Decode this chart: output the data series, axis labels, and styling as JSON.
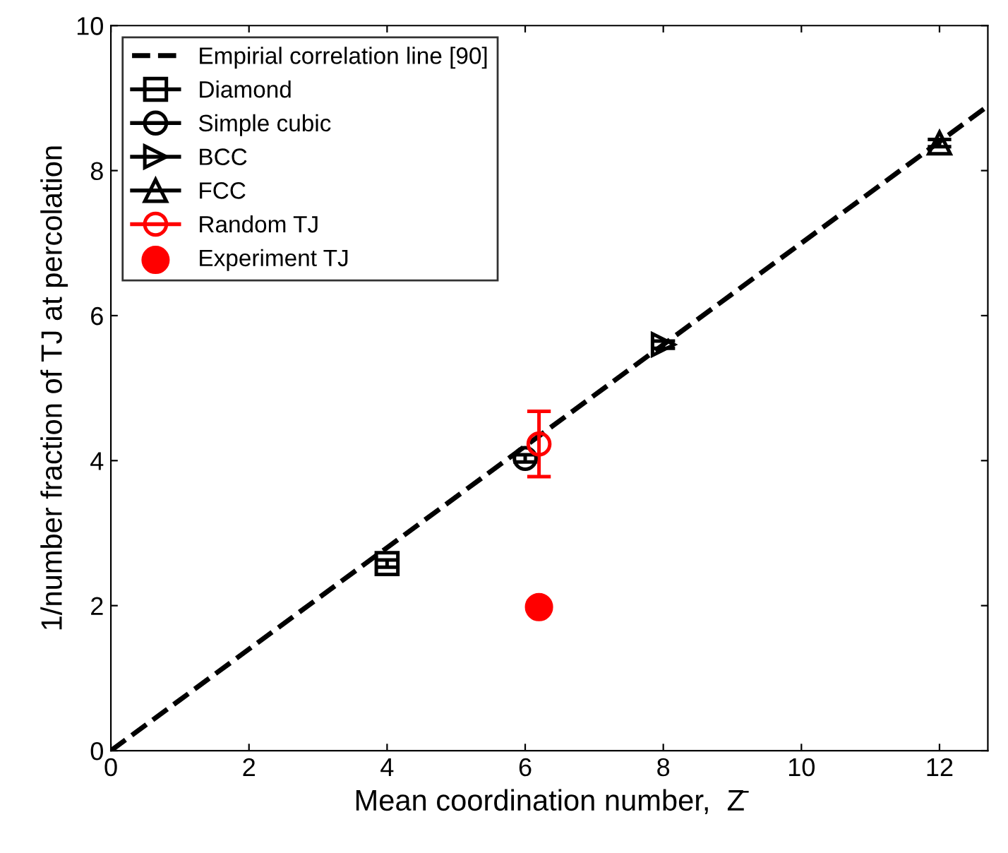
{
  "chart_data": {
    "type": "line",
    "xlabel": "Mean coordination number,  Z̄",
    "ylabel": "1/number fraction of TJ at percolation",
    "xlim": [
      0,
      12.7
    ],
    "ylim": [
      0,
      10
    ],
    "xticks": [
      0,
      2,
      4,
      6,
      8,
      10,
      12
    ],
    "yticks": [
      0,
      2,
      4,
      6,
      8,
      10
    ],
    "grid": false,
    "legend": "top left",
    "series": [
      {
        "name": "Empirial correlation line [90]",
        "color": "#000000",
        "line_style": "dashed",
        "marker": "none",
        "x": [
          0,
          12.7
        ],
        "values": [
          0,
          8.89
        ]
      },
      {
        "name": "Diamond",
        "color": "#000000",
        "marker": "square",
        "x": [
          4
        ],
        "values": [
          2.58
        ],
        "errors": [
          0.05
        ]
      },
      {
        "name": "Simple cubic",
        "color": "#000000",
        "marker": "circle",
        "x": [
          6
        ],
        "values": [
          4.03
        ],
        "errors": [
          0.05
        ]
      },
      {
        "name": "BCC",
        "color": "#000000",
        "marker": "triangle-right",
        "x": [
          8
        ],
        "values": [
          5.6
        ],
        "errors": [
          0.05
        ]
      },
      {
        "name": "FCC",
        "color": "#000000",
        "marker": "triangle",
        "x": [
          12
        ],
        "values": [
          8.38
        ],
        "errors": [
          0.05
        ]
      },
      {
        "name": "Random TJ",
        "color": "#ff0000",
        "marker": "circle",
        "x": [
          6.2
        ],
        "values": [
          4.23
        ],
        "errors": [
          [
            3.78,
            4.68
          ]
        ]
      },
      {
        "name": "Experiment TJ",
        "type": "scatter",
        "color": "#ff0000",
        "marker": "circle",
        "x": [
          6.2
        ],
        "values": [
          1.98
        ]
      }
    ]
  }
}
